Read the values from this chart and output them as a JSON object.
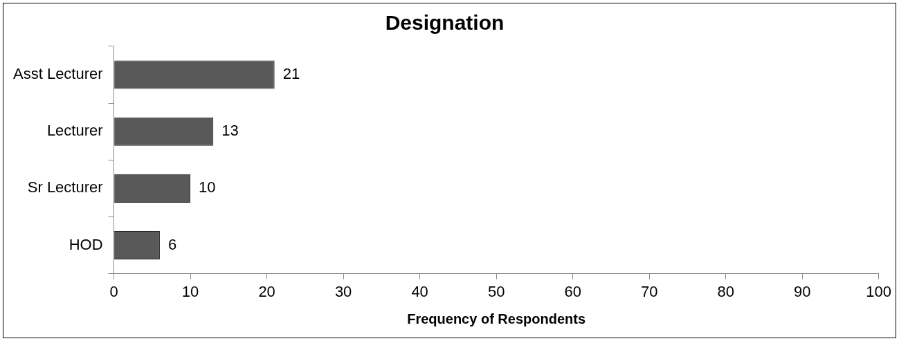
{
  "chart_data": {
    "type": "bar",
    "orientation": "horizontal",
    "title": "Designation",
    "xlabel": "Frequency of Respondents",
    "categories": [
      "Asst Lecturer",
      "Lecturer",
      "Sr Lecturer",
      "HOD"
    ],
    "values": [
      21,
      13,
      10,
      6
    ],
    "color": "#595959",
    "xlim": [
      0,
      100
    ],
    "xticks": [
      0,
      10,
      20,
      30,
      40,
      50,
      60,
      70,
      80,
      90,
      100
    ],
    "data_labels": true,
    "legend": false
  }
}
